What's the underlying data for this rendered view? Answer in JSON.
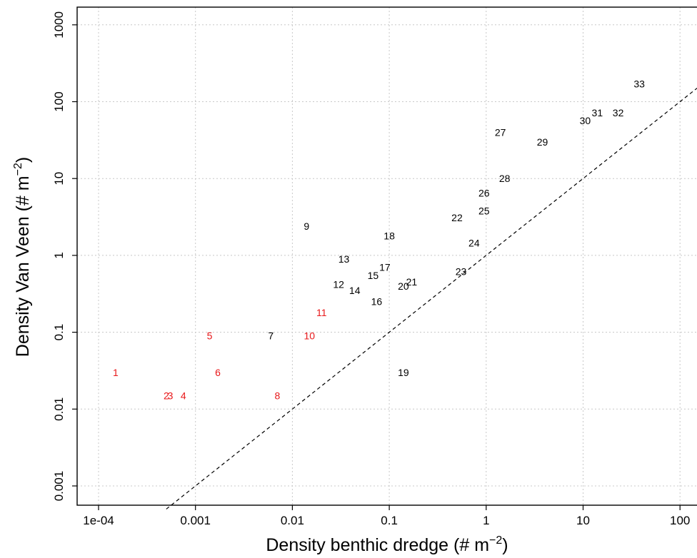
{
  "chart_data": {
    "type": "scatter",
    "xlabel": "Density benthic dredge (# m",
    "xlabel_sup": "−2",
    "xlabel_close": ")",
    "ylabel": "Density Van Veen (# m",
    "ylabel_sup": "−2",
    "ylabel_close": ")",
    "x_scale": "log",
    "y_scale": "log",
    "xlim": [
      5e-05,
      150
    ],
    "ylim": [
      0.0006,
      1600
    ],
    "x_ticks": [
      0.0001,
      0.001,
      0.01,
      0.1,
      1,
      10,
      100
    ],
    "x_tick_labels": [
      "1e-04",
      "0.001",
      "0.01",
      "0.1",
      "1",
      "10",
      "100"
    ],
    "y_ticks": [
      0.001,
      0.01,
      0.1,
      1,
      10,
      100,
      1000
    ],
    "y_tick_labels": [
      "0.001",
      "0.01",
      "0.1",
      "1",
      "10",
      "100",
      "1000"
    ],
    "grid": true,
    "reference_line": {
      "type": "1:1",
      "style": "dashed"
    },
    "colors": {
      "red": "#e8181a",
      "black": "#000000"
    },
    "points": [
      {
        "label": "1",
        "x": 0.00015,
        "y": 0.03,
        "color": "red"
      },
      {
        "label": "2",
        "x": 0.0005,
        "y": 0.015,
        "color": "red"
      },
      {
        "label": "3",
        "x": 0.00055,
        "y": 0.015,
        "color": "red"
      },
      {
        "label": "4",
        "x": 0.00075,
        "y": 0.015,
        "color": "red"
      },
      {
        "label": "5",
        "x": 0.0014,
        "y": 0.09,
        "color": "red"
      },
      {
        "label": "6",
        "x": 0.0017,
        "y": 0.03,
        "color": "red"
      },
      {
        "label": "7",
        "x": 0.006,
        "y": 0.09,
        "color": "black"
      },
      {
        "label": "8",
        "x": 0.007,
        "y": 0.015,
        "color": "red"
      },
      {
        "label": "9",
        "x": 0.014,
        "y": 2.4,
        "color": "black"
      },
      {
        "label": "10",
        "x": 0.015,
        "y": 0.09,
        "color": "red"
      },
      {
        "label": "11",
        "x": 0.02,
        "y": 0.18,
        "color": "red"
      },
      {
        "label": "12",
        "x": 0.03,
        "y": 0.42,
        "color": "black"
      },
      {
        "label": "13",
        "x": 0.034,
        "y": 0.9,
        "color": "black"
      },
      {
        "label": "14",
        "x": 0.044,
        "y": 0.35,
        "color": "black"
      },
      {
        "label": "15",
        "x": 0.068,
        "y": 0.55,
        "color": "black"
      },
      {
        "label": "16",
        "x": 0.074,
        "y": 0.25,
        "color": "black"
      },
      {
        "label": "17",
        "x": 0.09,
        "y": 0.7,
        "color": "black"
      },
      {
        "label": "18",
        "x": 0.1,
        "y": 1.8,
        "color": "black"
      },
      {
        "label": "19",
        "x": 0.14,
        "y": 0.03,
        "color": "black"
      },
      {
        "label": "20",
        "x": 0.14,
        "y": 0.4,
        "color": "black"
      },
      {
        "label": "21",
        "x": 0.17,
        "y": 0.45,
        "color": "black"
      },
      {
        "label": "22",
        "x": 0.5,
        "y": 3.1,
        "color": "black"
      },
      {
        "label": "23",
        "x": 0.55,
        "y": 0.62,
        "color": "black"
      },
      {
        "label": "24",
        "x": 0.75,
        "y": 1.45,
        "color": "black"
      },
      {
        "label": "25",
        "x": 0.95,
        "y": 3.8,
        "color": "black"
      },
      {
        "label": "26",
        "x": 0.95,
        "y": 6.5,
        "color": "black"
      },
      {
        "label": "27",
        "x": 1.4,
        "y": 40,
        "color": "black"
      },
      {
        "label": "28",
        "x": 1.55,
        "y": 10,
        "color": "black"
      },
      {
        "label": "29",
        "x": 3.8,
        "y": 30,
        "color": "black"
      },
      {
        "label": "30",
        "x": 10.5,
        "y": 57,
        "color": "black"
      },
      {
        "label": "31",
        "x": 14,
        "y": 72,
        "color": "black"
      },
      {
        "label": "32",
        "x": 23,
        "y": 72,
        "color": "black"
      },
      {
        "label": "33",
        "x": 38,
        "y": 170,
        "color": "black"
      }
    ]
  }
}
